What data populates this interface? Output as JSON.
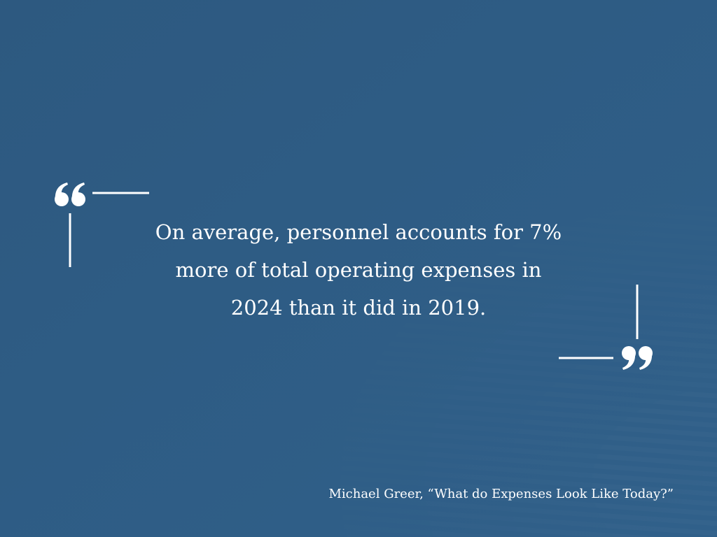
{
  "quote": {
    "lines": [
      "On average, personnel accounts for 7%",
      "more of total operating expenses in",
      "2024 than it did in 2019."
    ]
  },
  "attribution": "Michael Greer, “What do Expenses Look Like Today?”"
}
